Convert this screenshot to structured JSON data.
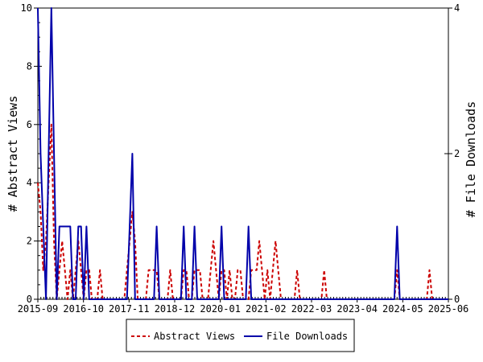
{
  "chart_data": {
    "type": "line",
    "ylabel_left": "# Abstract Views",
    "ylabel_right": "# File Downloads",
    "y_left_range": [
      0,
      10
    ],
    "y_right_range": [
      0,
      4
    ],
    "y_left_ticks": [
      "0",
      "2",
      "4",
      "6",
      "8",
      "10"
    ],
    "y_right_ticks": [
      "0",
      "2",
      "4"
    ],
    "x_ticks": [
      "2015-09",
      "2016-10",
      "2017-11",
      "2018-12",
      "2020-01",
      "2021-02",
      "2022-03",
      "2023-04",
      "2024-05",
      "2025-06"
    ],
    "legend_placement": "bottom",
    "series": [
      {
        "name": "Abstract Views",
        "axis": "left",
        "color": "#cc0000",
        "style": "dashed",
        "points": [
          [
            0.0,
            4
          ],
          [
            0.5,
            3
          ],
          [
            1.0,
            1
          ],
          [
            1.5,
            2
          ],
          [
            2.0,
            4
          ],
          [
            2.5,
            6
          ],
          [
            3.0,
            2
          ],
          [
            3.5,
            0
          ],
          [
            4.0,
            1
          ],
          [
            4.5,
            2
          ],
          [
            5.0,
            1
          ],
          [
            5.5,
            0
          ],
          [
            6.0,
            1
          ],
          [
            6.5,
            0
          ],
          [
            7.0,
            1
          ],
          [
            7.5,
            2
          ],
          [
            8.0,
            1
          ],
          [
            8.5,
            0
          ],
          [
            9.0,
            1
          ],
          [
            9.5,
            1
          ],
          [
            10.0,
            0
          ],
          [
            10.5,
            0
          ],
          [
            11.0,
            0
          ],
          [
            11.5,
            1
          ],
          [
            12.0,
            0
          ],
          [
            12.5,
            0
          ],
          [
            13.0,
            0
          ],
          [
            13.5,
            0
          ],
          [
            14.0,
            0
          ],
          [
            14.5,
            0
          ],
          [
            15.0,
            0
          ],
          [
            15.5,
            0
          ],
          [
            16.0,
            0
          ],
          [
            16.5,
            1
          ],
          [
            17.0,
            2
          ],
          [
            17.5,
            3
          ],
          [
            18.0,
            2
          ],
          [
            18.5,
            0
          ],
          [
            19.0,
            0
          ],
          [
            19.5,
            0
          ],
          [
            20.0,
            0
          ],
          [
            20.5,
            1
          ],
          [
            21.0,
            1
          ],
          [
            21.5,
            1
          ],
          [
            22.0,
            1
          ],
          [
            22.5,
            0
          ],
          [
            23.0,
            0
          ],
          [
            23.5,
            0
          ],
          [
            24.0,
            0
          ],
          [
            24.5,
            1
          ],
          [
            25.0,
            0
          ],
          [
            25.5,
            0
          ],
          [
            26.0,
            0
          ],
          [
            26.5,
            0
          ],
          [
            27.0,
            1
          ],
          [
            27.5,
            1
          ],
          [
            28.0,
            0
          ],
          [
            28.5,
            0
          ],
          [
            29.0,
            1
          ],
          [
            29.5,
            1
          ],
          [
            30.0,
            1
          ],
          [
            30.5,
            0
          ],
          [
            31.0,
            0
          ],
          [
            31.5,
            0
          ],
          [
            32.0,
            1
          ],
          [
            32.5,
            2
          ],
          [
            33.0,
            1
          ],
          [
            33.5,
            0
          ],
          [
            34.0,
            1
          ],
          [
            34.5,
            1
          ],
          [
            35.0,
            0
          ],
          [
            35.5,
            1
          ],
          [
            36.0,
            0
          ],
          [
            36.5,
            0
          ],
          [
            37.0,
            1
          ],
          [
            37.5,
            1
          ],
          [
            38.0,
            0
          ],
          [
            38.5,
            0
          ],
          [
            39.0,
            0
          ],
          [
            39.5,
            1
          ],
          [
            40.0,
            1
          ],
          [
            40.5,
            1
          ],
          [
            41.0,
            2
          ],
          [
            41.5,
            1
          ],
          [
            42.0,
            0
          ],
          [
            42.5,
            1
          ],
          [
            43.0,
            0
          ],
          [
            43.5,
            1
          ],
          [
            44.0,
            2
          ],
          [
            44.5,
            1
          ],
          [
            45.0,
            0
          ],
          [
            45.5,
            0
          ],
          [
            46.0,
            0
          ],
          [
            46.5,
            0
          ],
          [
            47.0,
            0
          ],
          [
            47.5,
            0
          ],
          [
            48.0,
            1
          ],
          [
            48.5,
            0
          ],
          [
            49.0,
            0
          ],
          [
            49.5,
            0
          ],
          [
            50.0,
            0
          ],
          [
            50.5,
            0
          ],
          [
            51.0,
            0
          ],
          [
            51.5,
            0
          ],
          [
            52.0,
            0
          ],
          [
            52.5,
            0
          ],
          [
            53.0,
            1
          ],
          [
            53.5,
            0
          ],
          [
            54.0,
            0
          ],
          [
            66.0,
            0
          ],
          [
            66.5,
            1
          ],
          [
            67.0,
            0
          ],
          [
            72.0,
            0
          ],
          [
            72.5,
            1
          ],
          [
            73.0,
            0
          ],
          [
            76.0,
            0
          ]
        ]
      },
      {
        "name": "File Downloads",
        "axis": "right",
        "color": "#0000aa",
        "style": "solid",
        "points": [
          [
            0.0,
            4
          ],
          [
            0.5,
            2
          ],
          [
            1.0,
            1
          ],
          [
            1.5,
            0
          ],
          [
            2.0,
            2
          ],
          [
            2.5,
            4
          ],
          [
            3.0,
            2
          ],
          [
            3.5,
            0
          ],
          [
            4.0,
            1
          ],
          [
            4.5,
            1
          ],
          [
            5.0,
            1
          ],
          [
            5.5,
            1
          ],
          [
            6.0,
            1
          ],
          [
            6.5,
            0
          ],
          [
            7.0,
            0
          ],
          [
            7.5,
            1
          ],
          [
            8.0,
            1
          ],
          [
            8.5,
            0
          ],
          [
            9.0,
            1
          ],
          [
            9.5,
            0
          ],
          [
            10.0,
            0
          ],
          [
            10.5,
            0
          ],
          [
            11.0,
            0
          ],
          [
            11.5,
            0
          ],
          [
            12.0,
            0
          ],
          [
            12.5,
            0
          ],
          [
            13.0,
            0
          ],
          [
            13.5,
            0
          ],
          [
            14.0,
            0
          ],
          [
            14.5,
            0
          ],
          [
            15.0,
            0
          ],
          [
            15.5,
            0
          ],
          [
            16.0,
            0
          ],
          [
            16.5,
            0
          ],
          [
            17.0,
            1
          ],
          [
            17.5,
            2
          ],
          [
            18.0,
            0
          ],
          [
            18.5,
            0
          ],
          [
            19.0,
            0
          ],
          [
            19.5,
            0
          ],
          [
            20.0,
            0
          ],
          [
            20.5,
            0
          ],
          [
            21.0,
            0
          ],
          [
            21.5,
            0
          ],
          [
            22.0,
            1
          ],
          [
            22.5,
            0
          ],
          [
            23.0,
            0
          ],
          [
            23.5,
            0
          ],
          [
            24.0,
            0
          ],
          [
            24.5,
            0
          ],
          [
            25.0,
            0
          ],
          [
            25.5,
            0
          ],
          [
            26.0,
            0
          ],
          [
            26.5,
            0
          ],
          [
            27.0,
            1
          ],
          [
            27.5,
            0
          ],
          [
            28.0,
            0
          ],
          [
            28.5,
            0
          ],
          [
            29.0,
            1
          ],
          [
            29.5,
            0
          ],
          [
            30.0,
            0
          ],
          [
            30.5,
            0
          ],
          [
            31.0,
            0
          ],
          [
            31.5,
            0
          ],
          [
            32.0,
            0
          ],
          [
            32.5,
            0
          ],
          [
            33.0,
            0
          ],
          [
            33.5,
            0
          ],
          [
            34.0,
            1
          ],
          [
            34.5,
            0
          ],
          [
            35.0,
            0
          ],
          [
            35.5,
            0
          ],
          [
            36.0,
            0
          ],
          [
            36.5,
            0
          ],
          [
            37.0,
            0
          ],
          [
            37.5,
            0
          ],
          [
            38.0,
            0
          ],
          [
            38.5,
            0
          ],
          [
            39.0,
            1
          ],
          [
            39.5,
            0
          ],
          [
            40.0,
            0
          ],
          [
            40.5,
            0
          ],
          [
            41.0,
            0
          ],
          [
            41.5,
            0
          ],
          [
            42.0,
            0
          ],
          [
            42.5,
            0
          ],
          [
            43.0,
            0
          ],
          [
            43.5,
            0
          ],
          [
            44.0,
            0
          ],
          [
            44.5,
            0
          ],
          [
            45.0,
            0
          ],
          [
            45.5,
            0
          ],
          [
            46.0,
            0
          ],
          [
            46.5,
            0
          ],
          [
            47.0,
            0
          ],
          [
            47.5,
            0
          ],
          [
            48.0,
            0
          ],
          [
            48.5,
            0
          ],
          [
            49.0,
            0
          ],
          [
            49.5,
            0
          ],
          [
            50.0,
            0
          ],
          [
            50.5,
            0
          ],
          [
            51.0,
            0
          ],
          [
            51.5,
            0
          ],
          [
            52.0,
            0
          ],
          [
            52.5,
            0
          ],
          [
            53.0,
            0
          ],
          [
            53.5,
            0
          ],
          [
            54.0,
            0
          ],
          [
            66.0,
            0
          ],
          [
            66.5,
            1
          ],
          [
            67.0,
            0
          ],
          [
            76.0,
            0
          ]
        ]
      }
    ]
  }
}
